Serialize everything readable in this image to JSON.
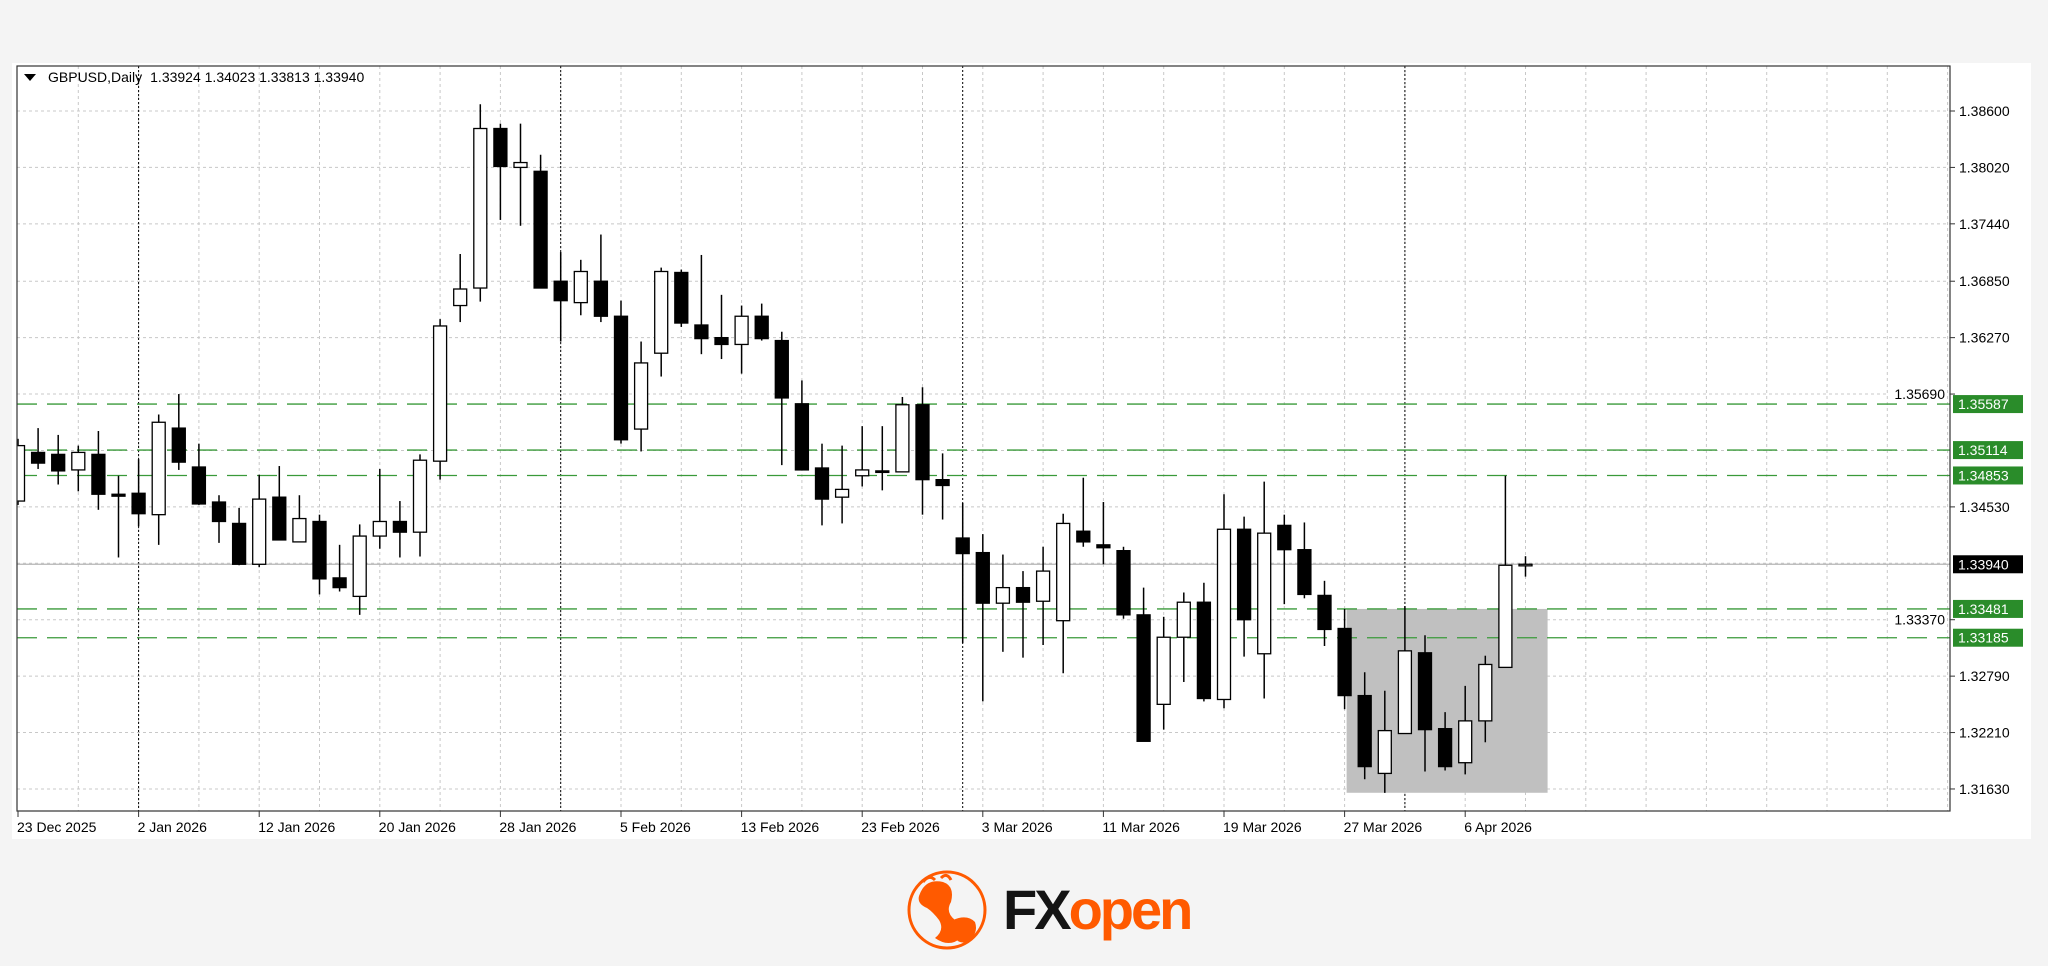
{
  "header": {
    "symbol": "GBPUSD,Daily",
    "ohlc": "1.33924 1.34023 1.33813 1.33940",
    "menu_icon": "triangle-down-icon"
  },
  "logo": {
    "text_dark": "FX",
    "text_accent": "open",
    "icon": "bull-circle-logo",
    "accent_color": "#ff5a00"
  },
  "colors": {
    "level_line": "#3a9a3a",
    "level_label": "#2a8c2a",
    "current_price_label": "#000000",
    "range_box": "#c0c0c0",
    "bull_body": "#ffffff",
    "bear_body": "#000000"
  },
  "chart_data": {
    "type": "candlestick",
    "symbol": "GBPUSD",
    "timeframe": "Daily",
    "grid": true,
    "ylim": [
      1.3135,
      1.389
    ],
    "y_ticks": [
      "1.38600",
      "1.38020",
      "1.37440",
      "1.36850",
      "1.36270",
      "1.35690",
      "1.34530",
      "1.33370",
      "1.32790",
      "1.32210",
      "1.31630"
    ],
    "y_grid": [
      1.386,
      1.3802,
      1.3744,
      1.3685,
      1.3627,
      1.3569,
      1.3511,
      1.3453,
      1.3395,
      1.3337,
      1.3279,
      1.3221,
      1.3163
    ],
    "x_ticks": [
      "23 Dec 2025",
      "2 Jan 2026",
      "12 Jan 2026",
      "20 Jan 2026",
      "28 Jan 2026",
      "5 Feb 2026",
      "13 Feb 2026",
      "23 Feb 2026",
      "3 Mar 2026",
      "11 Mar 2026",
      "19 Mar 2026",
      "27 Mar 2026",
      "6 Apr 2026"
    ],
    "month_separators": [
      "2 Jan 2026",
      "2 Feb 2026",
      "2 Mar 2026",
      "1 Apr 2026"
    ],
    "columns": [
      "date",
      "open",
      "high",
      "low",
      "close"
    ],
    "candles": [
      [
        "23 Dec 2025",
        1.3459,
        1.3523,
        1.3455,
        1.3516
      ],
      [
        "24 Dec 2025",
        1.3509,
        1.3534,
        1.3492,
        1.3498
      ],
      [
        "26 Dec 2025",
        1.3507,
        1.3527,
        1.3476,
        1.349
      ],
      [
        "29 Dec 2025",
        1.3491,
        1.3516,
        1.3469,
        1.3509
      ],
      [
        "30 Dec 2025",
        1.3507,
        1.3531,
        1.345,
        1.3466
      ],
      [
        "31 Dec 2025",
        1.3466,
        1.3485,
        1.3401,
        1.3464
      ],
      [
        "2 Jan 2026",
        1.3467,
        1.3502,
        1.3433,
        1.3446
      ],
      [
        "5 Jan 2026",
        1.3445,
        1.3548,
        1.3414,
        1.354
      ],
      [
        "6 Jan 2026",
        1.3534,
        1.3569,
        1.3491,
        1.3499
      ],
      [
        "7 Jan 2026",
        1.3494,
        1.3518,
        1.3455,
        1.3456
      ],
      [
        "8 Jan 2026",
        1.3458,
        1.3465,
        1.3416,
        1.3438
      ],
      [
        "9 Jan 2026",
        1.3436,
        1.3452,
        1.3393,
        1.3394
      ],
      [
        "12 Jan 2026",
        1.3394,
        1.3486,
        1.3391,
        1.3461
      ],
      [
        "13 Jan 2026",
        1.3463,
        1.3495,
        1.3419,
        1.3419
      ],
      [
        "14 Jan 2026",
        1.3417,
        1.3465,
        1.3417,
        1.3441
      ],
      [
        "15 Jan 2026",
        1.3438,
        1.3445,
        1.3363,
        1.3379
      ],
      [
        "16 Jan 2026",
        1.338,
        1.3414,
        1.3366,
        1.337
      ],
      [
        "19 Jan 2026",
        1.3361,
        1.3435,
        1.3342,
        1.3423
      ],
      [
        "20 Jan 2026",
        1.3423,
        1.3492,
        1.341,
        1.3438
      ],
      [
        "21 Jan 2026",
        1.3438,
        1.3459,
        1.3401,
        1.3427
      ],
      [
        "22 Jan 2026",
        1.3427,
        1.3507,
        1.3402,
        1.3501
      ],
      [
        "23 Jan 2026",
        1.35,
        1.3646,
        1.3481,
        1.3639
      ],
      [
        "26 Jan 2026",
        1.366,
        1.3713,
        1.3643,
        1.3677
      ],
      [
        "27 Jan 2026",
        1.3678,
        1.3867,
        1.3664,
        1.3842
      ],
      [
        "28 Jan 2026",
        1.3842,
        1.3847,
        1.3748,
        1.3803
      ],
      [
        "29 Jan 2026",
        1.3802,
        1.3847,
        1.3742,
        1.3807
      ],
      [
        "30 Jan 2026",
        1.3798,
        1.3815,
        1.3678,
        1.3678
      ],
      [
        "2 Feb 2026",
        1.3685,
        1.3715,
        1.3623,
        1.3665
      ],
      [
        "3 Feb 2026",
        1.3663,
        1.3707,
        1.365,
        1.3695
      ],
      [
        "4 Feb 2026",
        1.3685,
        1.3733,
        1.3643,
        1.3649
      ],
      [
        "5 Feb 2026",
        1.3649,
        1.3665,
        1.3518,
        1.3522
      ],
      [
        "6 Feb 2026",
        1.3533,
        1.3623,
        1.351,
        1.3601
      ],
      [
        "9 Feb 2026",
        1.3611,
        1.3699,
        1.3587,
        1.3695
      ],
      [
        "10 Feb 2026",
        1.3694,
        1.3697,
        1.3638,
        1.3642
      ],
      [
        "11 Feb 2026",
        1.364,
        1.3712,
        1.361,
        1.3626
      ],
      [
        "12 Feb 2026",
        1.3627,
        1.3671,
        1.3605,
        1.362
      ],
      [
        "13 Feb 2026",
        1.362,
        1.366,
        1.359,
        1.3649
      ],
      [
        "16 Feb 2026",
        1.3649,
        1.3662,
        1.3624,
        1.3626
      ],
      [
        "17 Feb 2026",
        1.3624,
        1.3633,
        1.3496,
        1.3565
      ],
      [
        "18 Feb 2026",
        1.3559,
        1.3583,
        1.3491,
        1.3491
      ],
      [
        "19 Feb 2026",
        1.3493,
        1.3518,
        1.3434,
        1.3461
      ],
      [
        "20 Feb 2026",
        1.3463,
        1.3516,
        1.3436,
        1.3471
      ],
      [
        "23 Feb 2026",
        1.3485,
        1.3536,
        1.3474,
        1.3491
      ],
      [
        "24 Feb 2026",
        1.349,
        1.3536,
        1.347,
        1.3489
      ],
      [
        "25 Feb 2026",
        1.3489,
        1.3566,
        1.3489,
        1.3558
      ],
      [
        "26 Feb 2026",
        1.3558,
        1.3576,
        1.3445,
        1.3481
      ],
      [
        "27 Feb 2026",
        1.3481,
        1.3508,
        1.344,
        1.3475
      ],
      [
        "2 Mar 2026",
        1.3421,
        1.3457,
        1.3313,
        1.3405
      ],
      [
        "3 Mar 2026",
        1.3406,
        1.3425,
        1.3253,
        1.3354
      ],
      [
        "4 Mar 2026",
        1.3354,
        1.3404,
        1.3304,
        1.337
      ],
      [
        "5 Mar 2026",
        1.337,
        1.3387,
        1.3298,
        1.3355
      ],
      [
        "6 Mar 2026",
        1.3356,
        1.3412,
        1.3311,
        1.3387
      ],
      [
        "9 Mar 2026",
        1.3336,
        1.3446,
        1.3282,
        1.3436
      ],
      [
        "10 Mar 2026",
        1.3428,
        1.3483,
        1.3412,
        1.3417
      ],
      [
        "11 Mar 2026",
        1.3414,
        1.3458,
        1.3394,
        1.3411
      ],
      [
        "12 Mar 2026",
        1.3408,
        1.3412,
        1.3338,
        1.3342
      ],
      [
        "13 Mar 2026",
        1.3342,
        1.337,
        1.3212,
        1.3212
      ],
      [
        "16 Mar 2026",
        1.325,
        1.334,
        1.3224,
        1.3319
      ],
      [
        "17 Mar 2026",
        1.3319,
        1.3365,
        1.3273,
        1.3355
      ],
      [
        "18 Mar 2026",
        1.3355,
        1.3375,
        1.3253,
        1.3256
      ],
      [
        "19 Mar 2026",
        1.3255,
        1.3466,
        1.3246,
        1.343
      ],
      [
        "20 Mar 2026",
        1.343,
        1.3443,
        1.3299,
        1.3337
      ],
      [
        "23 Mar 2026",
        1.3302,
        1.3479,
        1.3256,
        1.3426
      ],
      [
        "24 Mar 2026",
        1.3434,
        1.3445,
        1.3353,
        1.3409
      ],
      [
        "25 Mar 2026",
        1.3409,
        1.3437,
        1.3359,
        1.3363
      ],
      [
        "26 Mar 2026",
        1.3362,
        1.3377,
        1.331,
        1.3327
      ],
      [
        "27 Mar 2026",
        1.3328,
        1.3348,
        1.3245,
        1.3259
      ],
      [
        "30 Mar 2026",
        1.3259,
        1.3283,
        1.3173,
        1.3186
      ],
      [
        "31 Mar 2026",
        1.3179,
        1.3264,
        1.3159,
        1.3223
      ],
      [
        "1 Apr 2026",
        1.322,
        1.3351,
        1.322,
        1.3305
      ],
      [
        "2 Apr 2026",
        1.3303,
        1.3321,
        1.3181,
        1.3224
      ],
      [
        "3 Apr 2026",
        1.3225,
        1.3242,
        1.3182,
        1.3186
      ],
      [
        "6 Apr 2026",
        1.319,
        1.3269,
        1.3178,
        1.3233
      ],
      [
        "7 Apr 2026",
        1.3233,
        1.33,
        1.3211,
        1.3291
      ],
      [
        "8 Apr 2026",
        1.3288,
        1.3485,
        1.3288,
        1.3393
      ],
      [
        "9 Apr 2026",
        1.33924,
        1.34023,
        1.33813,
        1.3394
      ]
    ],
    "levels": [
      {
        "price": 1.35587,
        "label": "1.35587"
      },
      {
        "price": 1.35114,
        "label": "1.35114"
      },
      {
        "price": 1.34853,
        "label": "1.34853"
      },
      {
        "price": 1.33481,
        "label": "1.33481"
      },
      {
        "price": 1.33185,
        "label": "1.33185"
      }
    ],
    "current_price": {
      "price": 1.3394,
      "label": "1.33940"
    },
    "range_box": {
      "start": "27 Mar 2026",
      "end_index_offset": 10,
      "top": 1.33481,
      "bottom": 1.31591
    }
  }
}
